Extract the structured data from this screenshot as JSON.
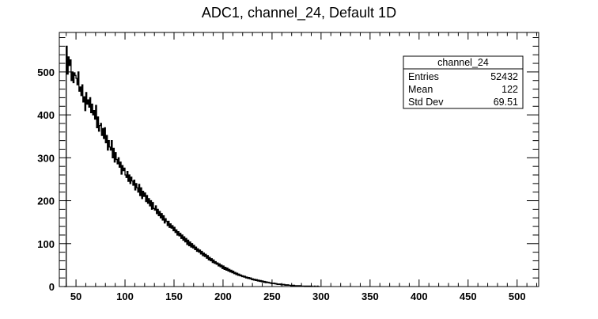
{
  "chart_data": {
    "type": "histogram",
    "title": "ADC1, channel_24, Default 1D",
    "xlabel": "",
    "ylabel": "",
    "xlim": [
      33,
      522
    ],
    "ylim": [
      0,
      592
    ],
    "x_ticks": [
      50,
      100,
      150,
      200,
      250,
      300,
      350,
      400,
      450,
      500
    ],
    "x_tick_labels": [
      "50",
      "100",
      "150",
      "200",
      "250",
      "300",
      "350",
      "400",
      "450",
      "500"
    ],
    "y_ticks": [
      0,
      100,
      200,
      300,
      400,
      500
    ],
    "y_tick_labels": [
      "0",
      "100",
      "200",
      "300",
      "400",
      "500"
    ],
    "bin_width": 1,
    "bin_start": 38,
    "values": [
      0,
      0,
      560,
      495,
      535,
      515,
      528,
      480,
      500,
      475,
      498,
      492,
      485,
      470,
      500,
      455,
      465,
      445,
      470,
      430,
      442,
      410,
      452,
      425,
      435,
      418,
      440,
      405,
      425,
      400,
      410,
      390,
      422,
      370,
      395,
      362,
      375,
      380,
      352,
      368,
      345,
      370,
      335,
      352,
      318,
      340,
      325,
      318,
      340,
      300,
      322,
      290,
      312,
      296,
      286,
      300,
      278,
      290,
      262,
      282,
      270,
      276,
      260,
      254,
      268,
      245,
      260,
      240,
      255,
      246,
      236,
      248,
      225,
      240,
      230,
      220,
      238,
      212,
      230,
      205,
      222,
      210,
      218,
      198,
      212,
      194,
      205,
      188,
      200,
      180,
      196,
      182,
      178,
      188,
      170,
      180,
      165,
      175,
      160,
      170,
      155,
      165,
      148,
      158,
      152,
      142,
      152,
      138,
      146,
      136,
      142,
      130,
      138,
      126,
      132,
      120,
      128,
      118,
      124,
      112,
      120,
      108,
      116,
      104,
      112,
      98,
      108,
      95,
      104,
      92,
      100,
      90,
      96,
      86,
      92,
      82,
      88,
      80,
      85,
      76,
      82,
      72,
      78,
      70,
      75,
      66,
      72,
      62,
      68,
      60,
      65,
      56,
      62,
      54,
      58,
      52,
      55,
      48,
      53,
      46,
      50,
      42,
      48,
      40,
      45,
      38,
      43,
      36,
      40,
      34,
      38,
      32,
      36,
      30,
      33,
      28,
      31,
      26,
      29,
      25,
      27,
      23,
      25,
      22,
      24,
      20,
      22,
      19,
      21,
      18,
      20,
      16,
      18,
      15,
      17,
      14,
      16,
      13,
      15,
      12,
      14,
      11,
      13,
      10,
      12,
      9,
      11,
      9,
      10,
      8,
      9,
      7,
      8,
      7,
      8,
      6,
      7,
      5,
      6,
      5,
      6,
      4,
      5,
      4,
      5,
      3,
      4,
      3,
      4,
      3,
      3,
      2,
      3,
      2,
      3,
      2,
      2,
      1,
      2,
      1,
      2,
      1,
      1,
      1,
      1,
      0,
      1,
      0,
      1,
      0,
      1,
      0,
      1,
      0,
      0,
      1,
      0,
      0,
      1,
      0,
      0
    ],
    "stats_box": {
      "title": "channel_24",
      "rows": [
        {
          "label": "Entries",
          "value": "52432"
        },
        {
          "label": "Mean",
          "value": "122"
        },
        {
          "label": "Std Dev",
          "value": "69.51"
        }
      ]
    },
    "grid": false,
    "line_color": "#000000",
    "background": "#ffffff"
  }
}
